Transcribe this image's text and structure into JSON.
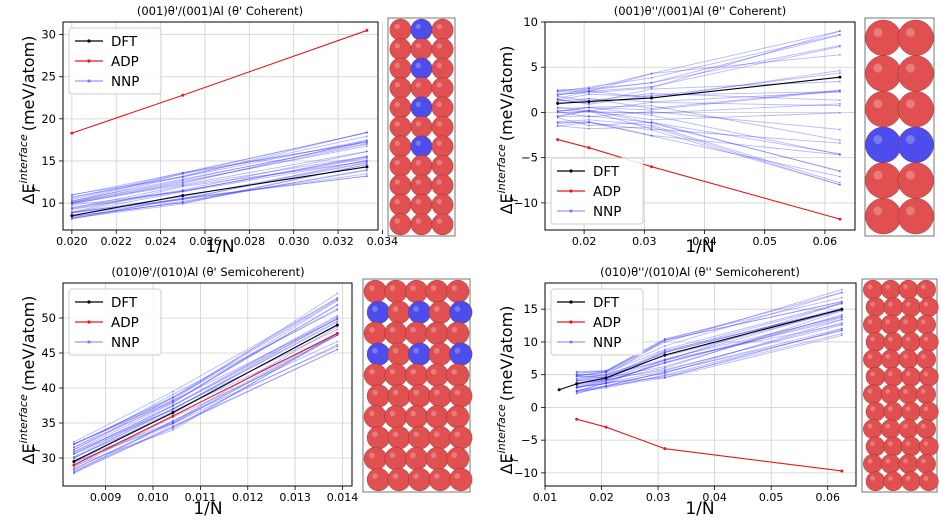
{
  "colors": {
    "dft": "#000000",
    "adp": "#e41a1c",
    "nnp": "#3333ff",
    "al_atom": "#e05050",
    "cu_atom": "#4d4dee"
  },
  "chart_data": [
    {
      "type": "line",
      "title": "(001)θ'/(001)Al (θ' Coherent)",
      "xlabel": "1/N",
      "ylabel_main": "ΔE",
      "ylabel_sub": "f",
      "ylabel_sup": "interface",
      "ylabel_unit": "(meV/atom)",
      "xlim": [
        0.0196,
        0.0338
      ],
      "ylim": [
        6.8,
        31.5
      ],
      "xticks": [
        0.02,
        0.022,
        0.024,
        0.026,
        0.028,
        0.03,
        0.032,
        0.034
      ],
      "xtick_labels": [
        "0.020",
        "0.022",
        "0.024",
        "0.026",
        "0.028",
        "0.030",
        "0.032",
        "0.034"
      ],
      "yticks": [
        10,
        15,
        20,
        25,
        30
      ],
      "ytick_labels": [
        "10",
        "15",
        "20",
        "25",
        "30"
      ],
      "legend": {
        "placement": "top-left",
        "entries": [
          "DFT",
          "ADP",
          "NNP"
        ]
      },
      "grid": true,
      "series": [
        {
          "name": "DFT",
          "x": [
            0.02,
            0.025,
            0.0333
          ],
          "y": [
            8.5,
            10.9,
            14.3
          ]
        },
        {
          "name": "ADP",
          "x": [
            0.02,
            0.025,
            0.0333
          ],
          "y": [
            18.3,
            22.8,
            30.5
          ]
        }
      ],
      "nnp": {
        "x": [
          0.02,
          0.025,
          0.0333
        ],
        "y_low": [
          8.0,
          9.9,
          13.2
        ],
        "y_high": [
          11.0,
          13.6,
          18.4
        ],
        "count": 30
      },
      "structure": {
        "rows": 11,
        "cols": 3,
        "cu_rows": [
          0,
          2,
          4,
          6
        ]
      }
    },
    {
      "type": "line",
      "title": "(001)θ''/(001)Al (θ'' Coherent)",
      "xlabel": "1/N",
      "ylabel_main": "ΔE",
      "ylabel_sub": "f",
      "ylabel_sup": "interface",
      "ylabel_unit": "(meV/atom)",
      "xlim": [
        0.0135,
        0.065
      ],
      "ylim": [
        -13.0,
        10.0
      ],
      "xticks": [
        0.02,
        0.03,
        0.04,
        0.05,
        0.06
      ],
      "xtick_labels": [
        "0.02",
        "0.03",
        "0.04",
        "0.05",
        "0.06"
      ],
      "yticks": [
        -10,
        -5,
        0,
        5,
        10
      ],
      "ytick_labels": [
        "−10",
        "−5",
        "0",
        "5",
        "10"
      ],
      "legend": {
        "placement": "bottom-left",
        "entries": [
          "DFT",
          "ADP",
          "NNP"
        ]
      },
      "grid": true,
      "series": [
        {
          "name": "DFT",
          "x": [
            0.0156,
            0.0208,
            0.0312,
            0.0625
          ],
          "y": [
            1.0,
            1.2,
            1.6,
            3.9
          ]
        },
        {
          "name": "ADP",
          "x": [
            0.0156,
            0.0208,
            0.0312,
            0.0625
          ],
          "y": [
            -3.0,
            -3.9,
            -6.0,
            -11.8
          ]
        }
      ],
      "nnp": {
        "x": [
          0.0156,
          0.0208,
          0.0312,
          0.0625
        ],
        "y_low": [
          -1.5,
          -1.8,
          -2.6,
          -8.0
        ],
        "y_high": [
          2.8,
          3.2,
          4.3,
          9.0
        ],
        "count": 30
      },
      "structure": {
        "rows": 6,
        "cols": 2,
        "cu_rows": [
          3
        ]
      }
    },
    {
      "type": "line",
      "title": "(010)θ'/(010)Al (θ' Semicoherent)",
      "xlabel": "1/N",
      "ylabel_main": "ΔE",
      "ylabel_sub": "f",
      "ylabel_sup": "interface",
      "ylabel_unit": "(meV/atom)",
      "xlim": [
        0.0081,
        0.0142
      ],
      "ylim": [
        26.0,
        55.0
      ],
      "xticks": [
        0.009,
        0.01,
        0.011,
        0.012,
        0.013,
        0.014
      ],
      "xtick_labels": [
        "0.009",
        "0.010",
        "0.011",
        "0.012",
        "0.013",
        "0.014"
      ],
      "yticks": [
        30,
        35,
        40,
        45,
        50
      ],
      "ytick_labels": [
        "30",
        "35",
        "40",
        "45",
        "50"
      ],
      "legend": {
        "placement": "top-left",
        "entries": [
          "DFT",
          "ADP",
          "NNP"
        ]
      },
      "grid": true,
      "series": [
        {
          "name": "DFT",
          "x": [
            0.00833,
            0.01042,
            0.01389
          ],
          "y": [
            29.5,
            36.5,
            49.0
          ]
        },
        {
          "name": "ADP",
          "x": [
            0.00833,
            0.01042,
            0.01389
          ],
          "y": [
            29.0,
            36.0,
            47.8
          ]
        }
      ],
      "nnp": {
        "x": [
          0.00833,
          0.01042,
          0.01389
        ],
        "y_low": [
          27.8,
          34.0,
          45.5
        ],
        "y_high": [
          32.5,
          39.5,
          53.5
        ],
        "count": 30
      },
      "structure": {
        "rows": 10,
        "cols": 5,
        "cu_rows": [
          1,
          3
        ]
      }
    },
    {
      "type": "line",
      "title": "(010)θ''/(010)Al (θ'' Semicoherent)",
      "xlabel": "1/N",
      "ylabel_main": "ΔE",
      "ylabel_sub": "f",
      "ylabel_sup": "interface",
      "ylabel_unit": "(meV/atom)",
      "xlim": [
        0.01,
        0.065
      ],
      "ylim": [
        -12.0,
        19.0
      ],
      "xticks": [
        0.01,
        0.02,
        0.03,
        0.04,
        0.05,
        0.06
      ],
      "xtick_labels": [
        "0.01",
        "0.02",
        "0.03",
        "0.04",
        "0.05",
        "0.06"
      ],
      "yticks": [
        -10,
        -5,
        0,
        5,
        10,
        15
      ],
      "ytick_labels": [
        "−10",
        "−5",
        "0",
        "5",
        "10",
        "15"
      ],
      "legend": {
        "placement": "top-left",
        "entries": [
          "DFT",
          "ADP",
          "NNP"
        ]
      },
      "grid": true,
      "series": [
        {
          "name": "DFT",
          "x": [
            0.0125,
            0.0156,
            0.0208,
            0.0312,
            0.0625
          ],
          "y": [
            2.7,
            3.6,
            4.5,
            8.0,
            15.0
          ]
        },
        {
          "name": "ADP",
          "x": [
            0.0156,
            0.0208,
            0.0312,
            0.0625
          ],
          "y": [
            -1.8,
            -3.0,
            -6.3,
            -9.7
          ]
        }
      ],
      "nnp": {
        "x": [
          0.0156,
          0.0208,
          0.0312,
          0.0625
        ],
        "y_low": [
          2.0,
          3.0,
          4.5,
          11.0
        ],
        "y_high": [
          5.5,
          5.6,
          10.5,
          18.0
        ],
        "count": 30
      },
      "structure": {
        "rows": 12,
        "cols": 4,
        "cu_rows": []
      }
    }
  ]
}
